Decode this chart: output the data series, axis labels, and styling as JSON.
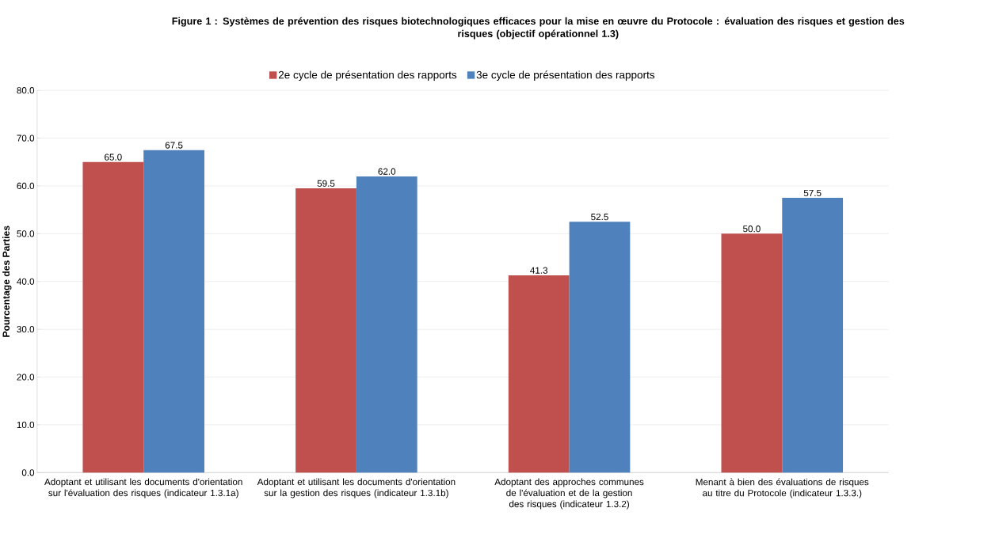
{
  "chart_data": {
    "type": "bar",
    "title": "Figure 1 : Systèmes de prévention des risques biotechnologiques efficaces pour la mise en œuvre du Protocole : évaluation des risques et gestion des risques (objectif opérationnel 1.3)",
    "ylabel": "Pourcentage des Parties",
    "categories": [
      "Adoptant et utilisant les documents d'orientation sur l'évaluation des risques (indicateur 1.3.1a)",
      "Adoptant et utilisant les documents d'orientation sur la gestion des risques (indicateur 1.3.1b)",
      "Adoptant des approches communes de l'évaluation et de la gestion des risques (indicateur 1.3.2)",
      "Menant à bien des évaluations de risques au titre du Protocole (indicateur 1.3.3.)"
    ],
    "series": [
      {
        "name": "2e cycle de présentation des rapports",
        "color": "#c0504d",
        "values": [
          65.0,
          59.5,
          41.3,
          50.0
        ],
        "value_labels": [
          "65.0",
          "59.5",
          "41.3",
          "50.0"
        ]
      },
      {
        "name": "3e cycle de présentation des rapports",
        "color": "#4f81bd",
        "values": [
          67.5,
          62.0,
          52.5,
          57.5
        ],
        "value_labels": [
          "67.5",
          "62.0",
          "52.5",
          "57.5"
        ]
      }
    ],
    "ylim": [
      0,
      80
    ],
    "yticks": [
      {
        "value": 0,
        "label": "0.0"
      },
      {
        "value": 10,
        "label": "10.0"
      },
      {
        "value": 20,
        "label": "20.0"
      },
      {
        "value": 30,
        "label": "30.0"
      },
      {
        "value": 40,
        "label": "40.0"
      },
      {
        "value": 50,
        "label": "50.0"
      },
      {
        "value": 60,
        "label": "60.0"
      },
      {
        "value": 70,
        "label": "70.0"
      },
      {
        "value": 80,
        "label": "80.0"
      }
    ],
    "grid": "y",
    "legend": "top"
  }
}
